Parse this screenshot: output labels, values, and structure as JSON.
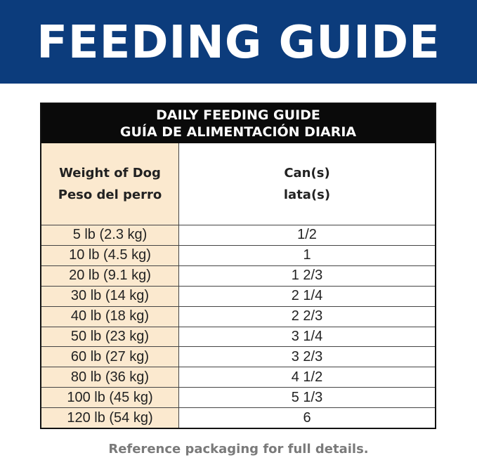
{
  "banner": {
    "title": "FEEDING GUIDE"
  },
  "table": {
    "title_en": "DAILY FEEDING GUIDE",
    "title_es": "GUÍA DE ALIMENTACIÓN DIARIA",
    "col1_en": "Weight of Dog",
    "col1_es": "Peso del perro",
    "col2_en": "Can(s)",
    "col2_es": "lata(s)",
    "rows": [
      {
        "weight": "5 lb (2.3 kg)",
        "cans": "1/2"
      },
      {
        "weight": "10 lb (4.5 kg)",
        "cans": "1"
      },
      {
        "weight": "20 lb (9.1 kg)",
        "cans": "1 2/3"
      },
      {
        "weight": "30 lb (14 kg)",
        "cans": "2 1/4"
      },
      {
        "weight": "40 lb (18 kg)",
        "cans": "2 2/3"
      },
      {
        "weight": "50 lb (23 kg)",
        "cans": "3 1/4"
      },
      {
        "weight": "60 lb (27 kg)",
        "cans": "3 2/3"
      },
      {
        "weight": "80 lb (36 kg)",
        "cans": "4 1/2"
      },
      {
        "weight": "100 lb (45 kg)",
        "cans": "5 1/3"
      },
      {
        "weight": "120 lb (54 kg)",
        "cans": "6"
      }
    ]
  },
  "footer": {
    "note": "Reference packaging for full details."
  },
  "colors": {
    "banner_blue": "#0c3c7c",
    "header_black": "#0a0a0a",
    "weight_column_cream": "#fbe9cf",
    "footer_gray": "#7a7a7a"
  }
}
